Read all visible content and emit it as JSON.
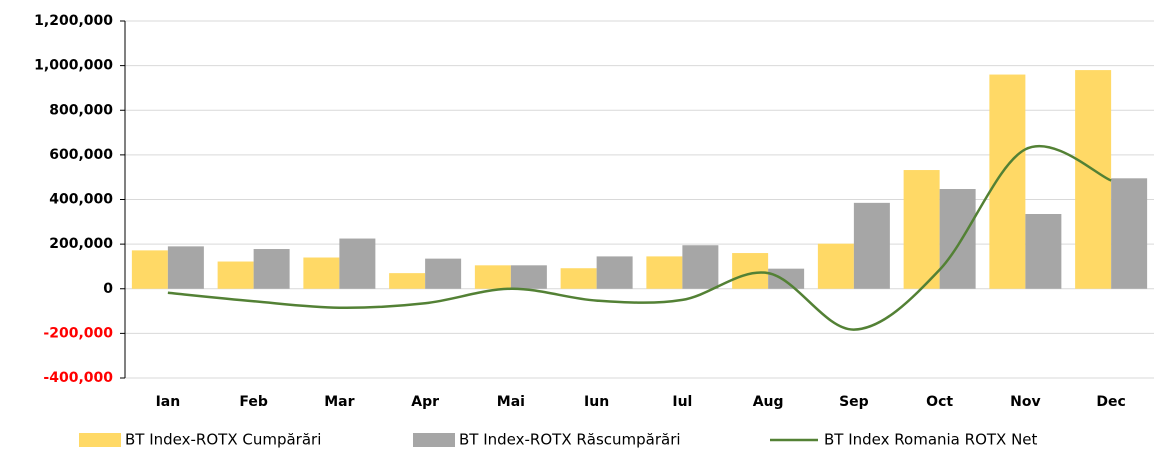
{
  "chart_data": {
    "type": "bar",
    "categories": [
      "Ian",
      "Feb",
      "Mar",
      "Apr",
      "Mai",
      "Iun",
      "Iul",
      "Aug",
      "Sep",
      "Oct",
      "Nov",
      "Dec"
    ],
    "series": [
      {
        "name": "BT Index-ROTX Cumpărări",
        "type": "bar",
        "color": "#ffd966",
        "values": [
          172000,
          122000,
          140000,
          70000,
          105000,
          92000,
          145000,
          160000,
          202000,
          532000,
          960000,
          980000
        ]
      },
      {
        "name": "BT Index-ROTX Răscumpărări",
        "type": "bar",
        "color": "#a6a6a6",
        "values": [
          190000,
          178000,
          225000,
          135000,
          105000,
          145000,
          195000,
          90000,
          385000,
          447000,
          335000,
          495000
        ]
      },
      {
        "name": "BT Index Romania ROTX Net",
        "type": "line",
        "color": "#538135",
        "values": [
          -18000,
          -56000,
          -85000,
          -65000,
          0,
          -53000,
          -50000,
          70000,
          -183000,
          85000,
          625000,
          485000
        ]
      }
    ],
    "ylim": [
      -400000,
      1200000
    ],
    "yticks": [
      {
        "value": -400000,
        "label": "-400,000"
      },
      {
        "value": -200000,
        "label": "-200,000"
      },
      0,
      {
        "value": 200000,
        "label": "200,000"
      },
      {
        "value": 400000,
        "label": "400,000"
      },
      {
        "value": 600000,
        "label": "600,000"
      },
      {
        "value": 800000,
        "label": "800,000"
      },
      {
        "value": 1000000,
        "label": "1,000,000"
      },
      {
        "value": 1200000,
        "label": "1,200,000"
      }
    ],
    "grid": true,
    "legend": "bottom",
    "negative_tick_color": "#ff0000"
  }
}
